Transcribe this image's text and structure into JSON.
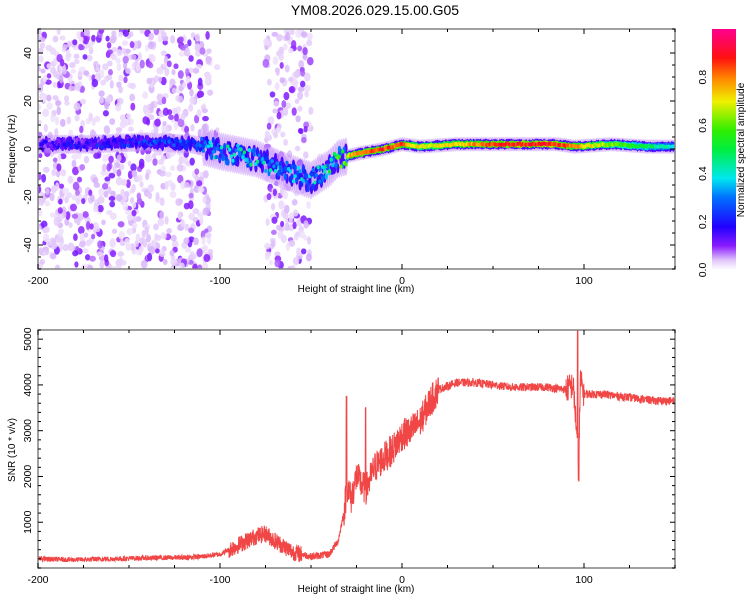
{
  "title": "YM08.2026.029.15.00.G05",
  "chart_data": [
    {
      "type": "heatmap",
      "name": "spectrogram",
      "title": "YM08.2026.029.15.00.G05",
      "xlabel": "Height of straight line (km)",
      "ylabel": "Frequency (Hz)",
      "xlim": [
        -200,
        150
      ],
      "ylim": [
        -50,
        50
      ],
      "xticks": [
        -200,
        -100,
        0,
        100
      ],
      "yticks": [
        -40,
        -20,
        0,
        20,
        40
      ],
      "colorbar": {
        "label": "Normalized spectral amplitude",
        "range": [
          0.0,
          1.0
        ],
        "ticks": [
          0.0,
          0.2,
          0.4,
          0.6,
          0.8
        ],
        "colormap": [
          "#ffffff",
          "#d9b8f5",
          "#8000ff",
          "#0000ff",
          "#00ffff",
          "#00ff00",
          "#ffff00",
          "#ff0000",
          "#ff0080"
        ]
      },
      "features": {
        "noise_regions_km": [
          [
            -200,
            -105
          ],
          [
            -75,
            -50
          ]
        ],
        "signal_track": [
          {
            "x": -200,
            "f": 2,
            "amp": 0.15
          },
          {
            "x": -170,
            "f": 2,
            "amp": 0.2
          },
          {
            "x": -140,
            "f": 3,
            "amp": 0.25
          },
          {
            "x": -115,
            "f": 2,
            "amp": 0.3
          },
          {
            "x": -100,
            "f": -1,
            "amp": 0.4
          },
          {
            "x": -80,
            "f": -4,
            "amp": 0.4
          },
          {
            "x": -65,
            "f": -9,
            "amp": 0.35
          },
          {
            "x": -50,
            "f": -13,
            "amp": 0.35
          },
          {
            "x": -40,
            "f": -8,
            "amp": 0.45
          },
          {
            "x": -35,
            "f": -4,
            "amp": 0.6
          },
          {
            "x": -25,
            "f": -2,
            "amp": 0.85
          },
          {
            "x": -10,
            "f": 0,
            "amp": 0.88
          },
          {
            "x": 0,
            "f": 2,
            "amp": 0.85
          },
          {
            "x": 10,
            "f": 1,
            "amp": 0.7
          },
          {
            "x": 30,
            "f": 2,
            "amp": 0.75
          },
          {
            "x": 60,
            "f": 2,
            "amp": 0.9
          },
          {
            "x": 85,
            "f": 2,
            "amp": 0.9
          },
          {
            "x": 95,
            "f": 1,
            "amp": 0.8
          },
          {
            "x": 115,
            "f": 2,
            "amp": 0.65
          },
          {
            "x": 135,
            "f": 1,
            "amp": 0.5
          },
          {
            "x": 150,
            "f": 1,
            "amp": 0.4
          }
        ]
      }
    },
    {
      "type": "line",
      "name": "snr",
      "xlabel": "Height of straight line (km)",
      "ylabel": "SNR (10 * v/v)",
      "xlim": [
        -200,
        150
      ],
      "ylim": [
        0,
        5200
      ],
      "xticks": [
        -200,
        -100,
        0,
        100
      ],
      "yticks": [
        1000,
        2000,
        3000,
        4000,
        5000
      ],
      "color": "#f03232",
      "series": [
        {
          "name": "SNR",
          "x": [
            -200,
            -180,
            -160,
            -140,
            -120,
            -110,
            -100,
            -90,
            -80,
            -75,
            -70,
            -60,
            -50,
            -40,
            -35,
            -32,
            -30,
            -28,
            -25,
            -20,
            -15,
            -10,
            -5,
            0,
            5,
            10,
            15,
            20,
            30,
            40,
            50,
            60,
            70,
            80,
            90,
            94,
            96,
            97,
            98,
            100,
            110,
            120,
            130,
            140,
            150
          ],
          "y": [
            200,
            180,
            200,
            220,
            230,
            250,
            300,
            500,
            700,
            750,
            600,
            350,
            250,
            300,
            600,
            1200,
            1800,
            1500,
            2000,
            1700,
            2200,
            2400,
            2600,
            2900,
            3000,
            3200,
            3600,
            3900,
            4050,
            4050,
            4000,
            3950,
            3950,
            3950,
            3900,
            4000,
            3000,
            2000,
            4100,
            3800,
            3800,
            3750,
            3700,
            3650,
            3650
          ]
        }
      ],
      "annotations": [
        {
          "x": -30,
          "y": 3750,
          "text": "spike"
        },
        {
          "x": 97,
          "y": 5200,
          "text": "spike"
        },
        {
          "x": 97,
          "y": 1900,
          "text": "dip"
        }
      ]
    }
  ],
  "colors": {
    "frame": "#808080",
    "snr_line": "#f03232",
    "background": "#ffffff"
  }
}
